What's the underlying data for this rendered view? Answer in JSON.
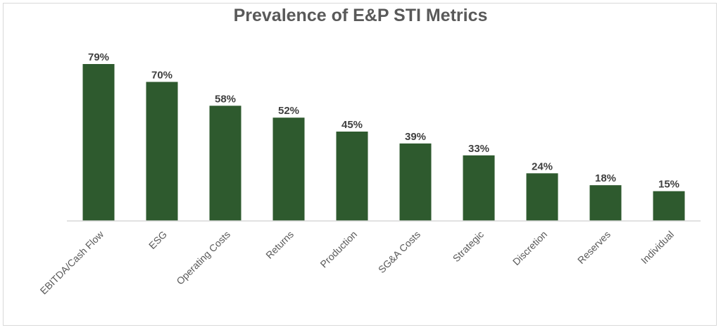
{
  "chart_data": {
    "type": "bar",
    "title": "Prevalence of E&P STI Metrics",
    "categories": [
      "EBITDA/Cash Flow",
      "ESG",
      "Operating Costs",
      "Returns",
      "Production",
      "SG&A Costs",
      "Strategic",
      "Discretion",
      "Reserves",
      "Individual"
    ],
    "values": [
      79,
      70,
      58,
      52,
      45,
      39,
      33,
      24,
      18,
      15
    ],
    "data_labels": [
      "79%",
      "70%",
      "58%",
      "52%",
      "45%",
      "39%",
      "33%",
      "24%",
      "18%",
      "15%"
    ],
    "xlabel": "",
    "ylabel": "",
    "ylim": [
      0,
      79
    ],
    "grid": false,
    "legend": "none",
    "bar_color": "#2e5a2e",
    "baseline_color": "#d9d9d9"
  }
}
